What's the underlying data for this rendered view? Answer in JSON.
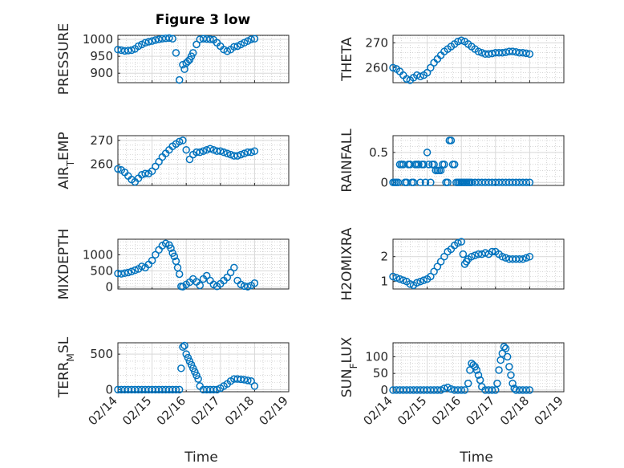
{
  "figure": {
    "title": "Figure 3 low",
    "xlabel": "Time"
  },
  "colors": {
    "marker": "#0072BD",
    "axes": "#262626",
    "grid": "#d9d9d9"
  },
  "chart_data": [
    {
      "type": "scatter",
      "ylabel": "PRESSURE",
      "ylabel_sub": null,
      "xlim": [
        0,
        5
      ],
      "ylim": [
        872,
        1012
      ],
      "yticks": [
        900,
        950,
        1000
      ],
      "ytick_labels": [
        "900",
        "950",
        "1000"
      ],
      "xtick_labels": [],
      "x": [
        0,
        0.1,
        0.2,
        0.3,
        0.4,
        0.5,
        0.6,
        0.7,
        0.8,
        0.9,
        1.0,
        1.1,
        1.2,
        1.3,
        1.4,
        1.5,
        1.6,
        1.7,
        1.8,
        1.9,
        1.95,
        2.0,
        2.05,
        2.1,
        2.15,
        2.2,
        2.3,
        2.4,
        2.5,
        2.6,
        2.7,
        2.8,
        2.9,
        3.0,
        3.1,
        3.2,
        3.3,
        3.4,
        3.5,
        3.6,
        3.7,
        3.8,
        3.9,
        4.0
      ],
      "y": [
        970,
        968,
        966,
        967,
        968,
        972,
        980,
        985,
        990,
        993,
        995,
        998,
        1000,
        1002,
        1003,
        1004,
        1002,
        960,
        880,
        925,
        912,
        930,
        935,
        940,
        950,
        960,
        985,
        1000,
        1002,
        1001,
        1000,
        999,
        990,
        980,
        970,
        965,
        970,
        978,
        980,
        985,
        990,
        995,
        1000,
        1002
      ]
    },
    {
      "type": "scatter",
      "ylabel": "THETA",
      "ylabel_sub": null,
      "xlim": [
        0,
        5
      ],
      "ylim": [
        254,
        273
      ],
      "yticks": [
        260,
        270
      ],
      "ytick_labels": [
        "260",
        "270"
      ],
      "xtick_labels": [],
      "x": [
        0,
        0.1,
        0.2,
        0.3,
        0.4,
        0.5,
        0.6,
        0.7,
        0.8,
        0.9,
        1.0,
        1.1,
        1.2,
        1.3,
        1.4,
        1.5,
        1.6,
        1.7,
        1.8,
        1.9,
        2.0,
        2.1,
        2.2,
        2.3,
        2.4,
        2.5,
        2.6,
        2.7,
        2.8,
        2.9,
        3.0,
        3.1,
        3.2,
        3.3,
        3.4,
        3.5,
        3.6,
        3.7,
        3.8,
        3.9,
        4.0
      ],
      "y": [
        260,
        259.5,
        258.5,
        257,
        255.5,
        255,
        256,
        257,
        256.5,
        257,
        258,
        260,
        262,
        263.5,
        265,
        266.5,
        267.5,
        268.5,
        269.5,
        270.5,
        271,
        270.5,
        269.5,
        268.5,
        267.5,
        266.5,
        266,
        265.5,
        265.5,
        265.7,
        266,
        266,
        266,
        266.2,
        266.5,
        266.5,
        266.3,
        266,
        266,
        265.8,
        265.5
      ]
    },
    {
      "type": "scatter",
      "ylabel": "AIR",
      "ylabel_sub": "T",
      "ylabel_after": "EMP",
      "xlim": [
        0,
        5
      ],
      "ylim": [
        251,
        272
      ],
      "yticks": [
        260,
        270
      ],
      "ytick_labels": [
        "260",
        "270"
      ],
      "xtick_labels": [],
      "x": [
        0,
        0.1,
        0.2,
        0.3,
        0.4,
        0.5,
        0.6,
        0.7,
        0.8,
        0.9,
        1.0,
        1.1,
        1.2,
        1.3,
        1.4,
        1.5,
        1.6,
        1.7,
        1.8,
        1.9,
        2.0,
        2.1,
        2.2,
        2.3,
        2.4,
        2.5,
        2.6,
        2.7,
        2.8,
        2.9,
        3.0,
        3.1,
        3.2,
        3.3,
        3.4,
        3.5,
        3.6,
        3.7,
        3.8,
        3.9,
        4.0
      ],
      "y": [
        258,
        257.5,
        256.5,
        255,
        253.5,
        252.5,
        254,
        255.5,
        256,
        256,
        257,
        259,
        261,
        263,
        264.5,
        266,
        267.5,
        268.5,
        269.5,
        270,
        266,
        262,
        264,
        265,
        265,
        265.5,
        266,
        266.5,
        266,
        265.5,
        265.5,
        265,
        264.5,
        264,
        263.5,
        263.5,
        264,
        264.5,
        265,
        265,
        265.5
      ]
    },
    {
      "type": "scatter",
      "ylabel": "RAINFALL",
      "ylabel_sub": null,
      "xlim": [
        0,
        5
      ],
      "ylim": [
        -0.05,
        0.78
      ],
      "yticks": [
        0,
        0.5
      ],
      "ytick_labels": [
        "0",
        "0.5"
      ],
      "xtick_labels": [],
      "x": [
        0,
        0.05,
        0.1,
        0.15,
        0.2,
        0.25,
        0.3,
        0.35,
        0.4,
        0.45,
        0.5,
        0.55,
        0.6,
        0.65,
        0.7,
        0.75,
        0.8,
        0.85,
        0.9,
        0.95,
        1.0,
        1.05,
        1.1,
        1.15,
        1.2,
        1.25,
        1.3,
        1.35,
        1.4,
        1.45,
        1.5,
        1.55,
        1.6,
        1.65,
        1.7,
        1.75,
        1.8,
        1.85,
        1.9,
        1.95,
        2.0,
        2.05,
        2.1,
        2.15,
        2.2,
        2.25,
        2.3,
        2.4,
        2.5,
        2.6,
        2.7,
        2.8,
        2.9,
        3.0,
        3.1,
        3.2,
        3.3,
        3.4,
        3.5,
        3.6,
        3.7,
        3.8,
        3.9,
        4.0
      ],
      "y": [
        0,
        0,
        0,
        0,
        0.3,
        0.3,
        0.3,
        0,
        0,
        0.3,
        0.3,
        0,
        0,
        0.3,
        0.3,
        0.3,
        0,
        0.3,
        0.3,
        0,
        0.5,
        0.3,
        0,
        0.3,
        0.3,
        0.2,
        0.2,
        0.2,
        0.2,
        0.3,
        0.3,
        0,
        0,
        0.7,
        0.7,
        0.3,
        0.3,
        0,
        0,
        0,
        0,
        0,
        0,
        0,
        0,
        0,
        0,
        0,
        0,
        0,
        0,
        0,
        0,
        0,
        0,
        0,
        0,
        0,
        0,
        0,
        0,
        0,
        0,
        0
      ]
    },
    {
      "type": "scatter",
      "ylabel": "MIXDEPTH",
      "ylabel_sub": null,
      "xlim": [
        0,
        5
      ],
      "ylim": [
        -60,
        1480
      ],
      "yticks": [
        0,
        500,
        1000
      ],
      "ytick_labels": [
        "0",
        "500",
        "1000"
      ],
      "xtick_labels": [],
      "x": [
        0,
        0.1,
        0.2,
        0.3,
        0.4,
        0.5,
        0.6,
        0.7,
        0.8,
        0.9,
        1.0,
        1.1,
        1.2,
        1.3,
        1.4,
        1.5,
        1.55,
        1.6,
        1.65,
        1.7,
        1.75,
        1.8,
        1.85,
        1.9,
        2.0,
        2.1,
        2.2,
        2.3,
        2.4,
        2.5,
        2.6,
        2.7,
        2.8,
        2.9,
        3.0,
        3.1,
        3.2,
        3.3,
        3.4,
        3.5,
        3.6,
        3.7,
        3.8,
        3.9,
        4.0
      ],
      "y": [
        420,
        410,
        430,
        450,
        480,
        520,
        560,
        640,
        600,
        700,
        820,
        1000,
        1150,
        1280,
        1350,
        1300,
        1200,
        1050,
        950,
        800,
        600,
        400,
        20,
        10,
        80,
        150,
        250,
        160,
        50,
        250,
        350,
        200,
        80,
        20,
        100,
        200,
        300,
        450,
        600,
        200,
        80,
        30,
        10,
        50,
        120
      ]
    },
    {
      "type": "scatter",
      "ylabel": "H2OMIXRA",
      "ylabel_sub": null,
      "xlim": [
        0,
        5
      ],
      "ylim": [
        0.7,
        2.7
      ],
      "yticks": [
        1,
        2
      ],
      "ytick_labels": [
        "1",
        "2"
      ],
      "xtick_labels": [],
      "x": [
        0,
        0.1,
        0.2,
        0.3,
        0.4,
        0.5,
        0.6,
        0.7,
        0.8,
        0.9,
        1.0,
        1.1,
        1.2,
        1.3,
        1.4,
        1.5,
        1.6,
        1.7,
        1.8,
        1.9,
        2.0,
        2.05,
        2.1,
        2.15,
        2.2,
        2.3,
        2.4,
        2.5,
        2.6,
        2.7,
        2.8,
        2.9,
        3.0,
        3.1,
        3.2,
        3.3,
        3.4,
        3.5,
        3.6,
        3.7,
        3.8,
        3.9,
        4.0
      ],
      "y": [
        1.2,
        1.15,
        1.1,
        1.05,
        1.0,
        0.9,
        0.85,
        0.95,
        1.0,
        1.05,
        1.1,
        1.2,
        1.4,
        1.6,
        1.8,
        2.0,
        2.2,
        2.3,
        2.45,
        2.55,
        2.6,
        2.1,
        1.7,
        1.8,
        1.9,
        2.0,
        2.05,
        2.1,
        2.1,
        2.15,
        2.1,
        2.2,
        2.2,
        2.1,
        2.0,
        1.95,
        1.9,
        1.9,
        1.9,
        1.9,
        1.9,
        1.95,
        2.0
      ]
    },
    {
      "type": "scatter",
      "ylabel": "TERR",
      "ylabel_sub": "M",
      "ylabel_after": "SL",
      "xlim": [
        0,
        5
      ],
      "ylim": [
        -30,
        660
      ],
      "yticks": [
        0,
        500
      ],
      "ytick_labels": [
        "0",
        "500"
      ],
      "xtick_labels": [
        "02/14",
        "02/15",
        "02/16",
        "02/17",
        "02/18",
        "02/19"
      ],
      "x": [
        0,
        0.1,
        0.2,
        0.3,
        0.4,
        0.5,
        0.6,
        0.7,
        0.8,
        0.9,
        1.0,
        1.1,
        1.2,
        1.3,
        1.4,
        1.5,
        1.6,
        1.7,
        1.8,
        1.85,
        1.9,
        1.95,
        2.0,
        2.05,
        2.1,
        2.15,
        2.2,
        2.25,
        2.3,
        2.35,
        2.4,
        2.5,
        2.6,
        2.7,
        2.8,
        2.9,
        3.0,
        3.1,
        3.2,
        3.3,
        3.4,
        3.5,
        3.6,
        3.7,
        3.8,
        3.9,
        4.0
      ],
      "y": [
        0,
        0,
        0,
        0,
        0,
        0,
        0,
        0,
        0,
        0,
        0,
        0,
        0,
        0,
        0,
        0,
        0,
        0,
        0,
        300,
        600,
        620,
        500,
        450,
        400,
        350,
        300,
        250,
        200,
        150,
        50,
        0,
        0,
        0,
        0,
        0,
        20,
        50,
        80,
        120,
        150,
        150,
        145,
        140,
        130,
        120,
        50
      ]
    },
    {
      "type": "scatter",
      "ylabel": "SUN",
      "ylabel_sub": "F",
      "ylabel_after": "LUX",
      "xlim": [
        0,
        5
      ],
      "ylim": [
        -5,
        142
      ],
      "yticks": [
        0,
        50,
        100
      ],
      "ytick_labels": [
        "0",
        "50",
        "100"
      ],
      "xtick_labels": [
        "02/14",
        "02/15",
        "02/16",
        "02/17",
        "02/18",
        "02/19"
      ],
      "x": [
        0,
        0.1,
        0.2,
        0.3,
        0.4,
        0.5,
        0.6,
        0.7,
        0.8,
        0.9,
        1.0,
        1.1,
        1.2,
        1.3,
        1.4,
        1.5,
        1.6,
        1.7,
        1.8,
        1.9,
        2.0,
        2.1,
        2.2,
        2.25,
        2.3,
        2.35,
        2.4,
        2.45,
        2.5,
        2.55,
        2.6,
        2.7,
        2.8,
        2.9,
        3.0,
        3.05,
        3.1,
        3.15,
        3.2,
        3.25,
        3.3,
        3.35,
        3.4,
        3.45,
        3.5,
        3.55,
        3.6,
        3.7,
        3.8,
        3.9,
        4.0
      ],
      "y": [
        0,
        0,
        0,
        0,
        0,
        0,
        0,
        0,
        0,
        0,
        0,
        0,
        0,
        0,
        0,
        5,
        8,
        3,
        0,
        0,
        0,
        0,
        20,
        60,
        80,
        75,
        70,
        60,
        45,
        30,
        10,
        0,
        0,
        0,
        0,
        20,
        60,
        90,
        110,
        130,
        125,
        100,
        70,
        45,
        20,
        5,
        0,
        0,
        0,
        0,
        0
      ]
    }
  ]
}
